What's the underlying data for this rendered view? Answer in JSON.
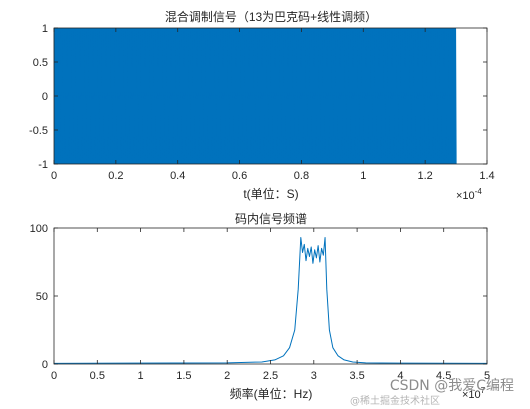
{
  "chart_data": [
    {
      "type": "line",
      "title": "混合调制信号（13为巴克码+线性调频）",
      "xlabel": "t(单位：S)",
      "ylabel": "",
      "x_exponent_label": "×10",
      "x_exponent_power": "-4",
      "xlim": [
        0,
        1.4
      ],
      "ylim": [
        -1,
        1
      ],
      "xticks": [
        "0",
        "0.2",
        "0.4",
        "0.6",
        "0.8",
        "1",
        "1.2",
        "1.4"
      ],
      "xtick_values": [
        0,
        0.2,
        0.4,
        0.6,
        0.8,
        1.0,
        1.2,
        1.4
      ],
      "yticks": [
        "-1",
        "-0.5",
        "0",
        "0.5",
        "1"
      ],
      "ytick_values": [
        -1,
        -0.5,
        0,
        0.5,
        1
      ],
      "signal_span": [
        0,
        1.3
      ],
      "grid": false,
      "series": [
        {
          "color": "#0072BD",
          "description_values": {
            "amplitude": 1
          }
        }
      ]
    },
    {
      "type": "line",
      "title": "码内信号频谱",
      "xlabel": "频率(单位：Hz)",
      "ylabel": "",
      "x_exponent_label": "×10",
      "x_exponent_power": "7",
      "xlim": [
        0,
        5
      ],
      "ylim": [
        0,
        100
      ],
      "xticks": [
        "0",
        "0.5",
        "1",
        "1.5",
        "2",
        "2.5",
        "3",
        "3.5",
        "4",
        "4.5",
        "5"
      ],
      "xtick_values": [
        0,
        0.5,
        1,
        1.5,
        2,
        2.5,
        3,
        3.5,
        4,
        4.5,
        5
      ],
      "yticks": [
        "0",
        "50",
        "100"
      ],
      "ytick_values": [
        0,
        50,
        100
      ],
      "grid": false,
      "series": [
        {
          "color": "#0072BD",
          "x": [
            0,
            2.0,
            2.4,
            2.55,
            2.65,
            2.72,
            2.78,
            2.82,
            2.85,
            2.87,
            2.89,
            2.91,
            2.93,
            2.95,
            2.97,
            2.99,
            3.01,
            3.03,
            3.05,
            3.07,
            3.09,
            3.11,
            3.13,
            3.15,
            3.18,
            3.22,
            3.28,
            3.35,
            3.45,
            3.6,
            4.0,
            5.0
          ],
          "y": [
            0.5,
            0.8,
            1.5,
            3,
            6,
            12,
            25,
            55,
            93,
            82,
            88,
            76,
            85,
            79,
            86,
            74,
            84,
            78,
            87,
            75,
            85,
            80,
            93,
            55,
            25,
            12,
            6,
            3,
            1.5,
            0.8,
            0.6,
            0.5
          ]
        }
      ]
    }
  ],
  "watermark": {
    "main": "CSDN @我爱C编程",
    "sub": "@稀土掘金技术社区"
  }
}
